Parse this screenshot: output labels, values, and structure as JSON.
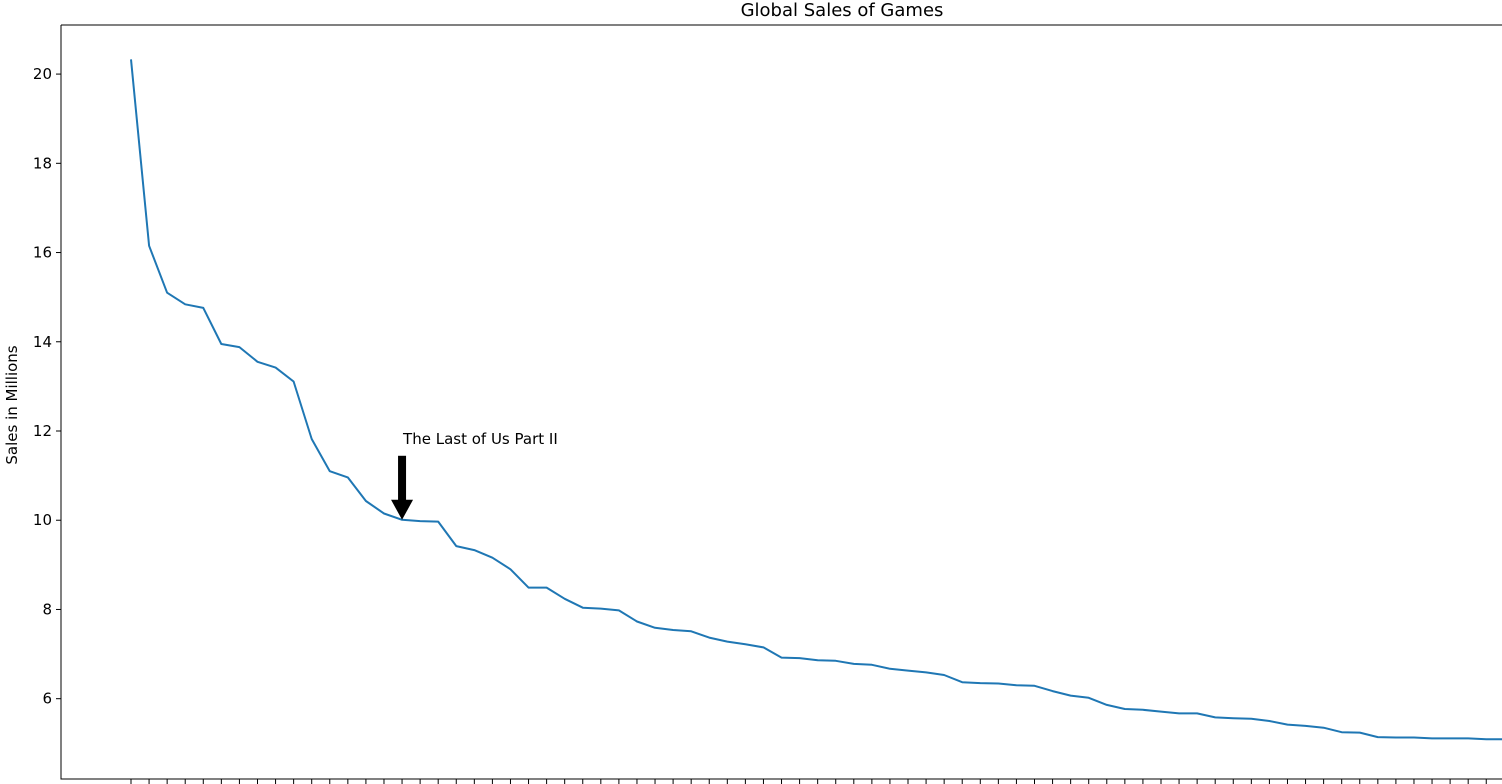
{
  "chart_data": {
    "type": "line",
    "title": "Global Sales of Games",
    "xlabel": "",
    "ylabel": "Sales in Millions",
    "ylim": [
      4.2,
      21.1
    ],
    "yticks": [
      6,
      8,
      10,
      12,
      14,
      16,
      18,
      20
    ],
    "grid": false,
    "legend": "none",
    "series": [
      {
        "color": "#1f77b4",
        "values": [
          20.33,
          16.15,
          15.1,
          14.84,
          14.76,
          13.95,
          13.88,
          13.55,
          13.42,
          13.11,
          11.82,
          11.1,
          10.96,
          10.43,
          10.15,
          10.01,
          9.98,
          9.97,
          9.42,
          9.33,
          9.16,
          8.9,
          8.49,
          8.49,
          8.24,
          8.04,
          8.02,
          7.98,
          7.73,
          7.59,
          7.54,
          7.51,
          7.37,
          7.28,
          7.22,
          7.15,
          6.92,
          6.91,
          6.86,
          6.85,
          6.78,
          6.76,
          6.67,
          6.63,
          6.59,
          6.53,
          6.37,
          6.35,
          6.34,
          6.3,
          6.29,
          6.17,
          6.07,
          6.02,
          5.86,
          5.77,
          5.75,
          5.71,
          5.67,
          5.67,
          5.58,
          5.56,
          5.55,
          5.5,
          5.42,
          5.39,
          5.35,
          5.25,
          5.24,
          5.14,
          5.13,
          5.13,
          5.11,
          5.11,
          5.11,
          5.09,
          5.09
        ]
      }
    ],
    "annotations": [
      {
        "text": "The Last of Us Part II",
        "point_index": 15,
        "value": 10.01,
        "arrow": "down",
        "arrow_color": "#000000"
      }
    ]
  }
}
